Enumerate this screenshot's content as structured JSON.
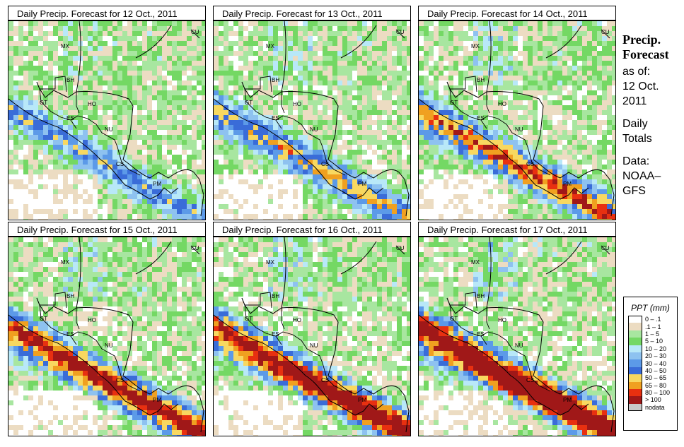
{
  "panels": [
    {
      "title": "Daily Precip. Forecast for  12 Oct., 2011",
      "seed": 12,
      "intensity": 0.9
    },
    {
      "title": "Daily Precip. Forecast for  13 Oct., 2011",
      "seed": 13,
      "intensity": 1.1
    },
    {
      "title": "Daily Precip. Forecast for  14 Oct., 2011",
      "seed": 14,
      "intensity": 1.4
    },
    {
      "title": "Daily Precip. Forecast for  15 Oct., 2011",
      "seed": 15,
      "intensity": 1.6
    },
    {
      "title": "Daily Precip. Forecast for  16 Oct., 2011",
      "seed": 16,
      "intensity": 1.7
    },
    {
      "title": "Daily Precip. Forecast for  17 Oct., 2011",
      "seed": 17,
      "intensity": 1.9
    }
  ],
  "map_labels": [
    "MX",
    "CU",
    "BH",
    "GT",
    "HO",
    "ES",
    "NU",
    "CS",
    "PM"
  ],
  "side": {
    "heading1": "Precip.",
    "heading2": "Forecast",
    "line1": "as of:",
    "line2": "12 Oct.",
    "line3": "2011",
    "line4": "Daily",
    "line5": "Totals",
    "line6": "Data:",
    "line7": "NOAA–",
    "line8": "GFS"
  },
  "legend": {
    "title": "PPT (mm)",
    "items": [
      {
        "label": "0 – .1",
        "color": "#ffffff"
      },
      {
        "label": ".1 – 1",
        "color": "#ecdcc2"
      },
      {
        "label": "1 – 5",
        "color": "#a8e6a0"
      },
      {
        "label": "5 – 10",
        "color": "#74d864"
      },
      {
        "label": "10 – 20",
        "color": "#b8e8f8"
      },
      {
        "label": "20 – 30",
        "color": "#8ec2f0"
      },
      {
        "label": "30 – 40",
        "color": "#5c9ae8"
      },
      {
        "label": "40 – 50",
        "color": "#3a6cd8"
      },
      {
        "label": "50 – 65",
        "color": "#f8d860"
      },
      {
        "label": "65 – 80",
        "color": "#f0a020"
      },
      {
        "label": "80 – 100",
        "color": "#e83010"
      },
      {
        "label": "> 100",
        "color": "#a01818"
      },
      {
        "label": "nodata",
        "color": "#c8c8c8"
      }
    ]
  }
}
